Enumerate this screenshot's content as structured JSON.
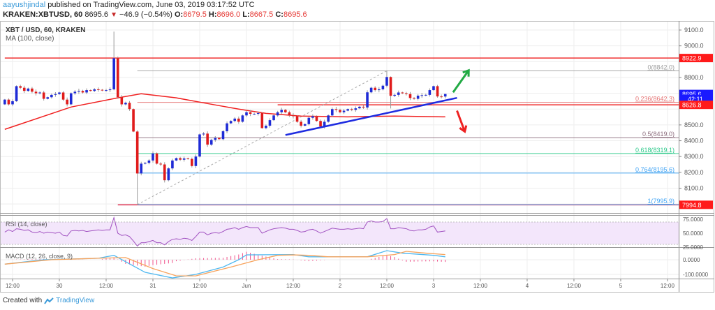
{
  "header": {
    "author": "aayushjindal",
    "published": "published on TradingView.com, June 03, 2019 03:17:52 UTC",
    "symbol": "KRAKEN:XBTUSD, 60",
    "last": "8695.6",
    "change": "−46.9 (−0.54%)",
    "o_label": "O:",
    "o": "8679.5",
    "h_label": "H:",
    "h": "8696.0",
    "l_label": "L:",
    "l": "8667.5",
    "c_label": "C:",
    "c": "8695.6"
  },
  "legend": {
    "title": "XBT / USD, 60, KRAKEN",
    "ma": "MA (100, close)",
    "rsi": "RSI (14, close)",
    "macd": "MACD (12, 26, close, 9)"
  },
  "footer": {
    "created_with": "Created with",
    "brand": "TradingView"
  },
  "colors": {
    "up": "#1e2bd6",
    "down": "#e01b1b",
    "ma": "#f02020",
    "trendline": "#1e2be0",
    "rsi": "#a050c0",
    "macd": "#4fb8f0",
    "signal": "#f7a35c",
    "hist": "#f0508a"
  },
  "chart_data": {
    "type": "candlestick",
    "interval": "60",
    "start": "05-29 10:00",
    "first_open": 8630,
    "close": [
      8660,
      8630,
      8650,
      8745,
      8735,
      8715,
      8730,
      8710,
      8700,
      8705,
      8665,
      8675,
      8690,
      8695,
      8705,
      8660,
      8630,
      8700,
      8710,
      8715,
      8705,
      8720,
      8715,
      8725,
      8722,
      8718,
      8720,
      8725,
      8922,
      8675,
      8630,
      8640,
      8600,
      8458,
      8193,
      8255,
      8260,
      8275,
      8320,
      8255,
      8250,
      8150,
      8225,
      8275,
      8290,
      8280,
      8288,
      8285,
      8240,
      8300,
      8440,
      8445,
      8375,
      8405,
      8418,
      8410,
      8460,
      8510,
      8525,
      8540,
      8520,
      8560,
      8580,
      8570,
      8570,
      8575,
      8480,
      8495,
      8530,
      8560,
      8580,
      8595,
      8580,
      8560,
      8555,
      8520,
      8495,
      8505,
      8545,
      8555,
      8525,
      8490,
      8520,
      8560,
      8600,
      8595,
      8580,
      8590,
      8600,
      8595,
      8605,
      8615,
      8610,
      8706,
      8735,
      8720,
      8725,
      8748,
      8803,
      8684,
      8690,
      8705,
      8700,
      8695,
      8670,
      8665,
      8685,
      8688,
      8690,
      8720,
      8745,
      8680,
      8679.5,
      8695.6
    ],
    "wick_extremes": [
      {
        "time": "05-30 14:00",
        "high": 9090
      },
      {
        "time": "05-30 20:00",
        "low": 7995.9
      },
      {
        "time": "06-02 12:00",
        "high": 8842
      },
      {
        "time": "06-02 13:00",
        "low": 8604
      },
      {
        "time": "06-03 03:00",
        "high": 8696.0,
        "low": 8667.5
      }
    ],
    "ma100": [
      [
        "05-29 10:00",
        8472
      ],
      [
        "05-30 03:00",
        8613
      ],
      [
        "05-30 15:00",
        8671
      ],
      [
        "05-30 21:00",
        8697
      ],
      [
        "05-31 06:00",
        8671
      ],
      [
        "05-31 14:00",
        8635
      ],
      [
        "05-31 22:00",
        8600
      ],
      [
        "06-01 05:00",
        8573
      ],
      [
        "06-01 14:00",
        8556
      ],
      [
        "06-02 02:00",
        8551
      ],
      [
        "06-02 14:00",
        8556
      ],
      [
        "06-03 03:00",
        8551
      ]
    ],
    "price_axis": {
      "range": [
        7950,
        9150
      ],
      "ticks": [
        "9100.0",
        "9000.0",
        "8800.0",
        "8500.0",
        "8400.0",
        "8300.0",
        "8200.0",
        "8100.0"
      ],
      "tick_values": [
        9100,
        9000,
        8800,
        8500,
        8400,
        8300,
        8200,
        8100
      ],
      "grid_values": [
        9100,
        9000,
        8900,
        8800,
        8700,
        8600,
        8500,
        8400,
        8300,
        8200,
        8100,
        8000
      ]
    },
    "time_axis": {
      "labels": [
        "12:00",
        "30",
        "12:00",
        "31",
        "12:00",
        "Jun",
        "12:00",
        "2",
        "12:00",
        "3",
        "12:00",
        "4",
        "12:00",
        "5",
        "12:00"
      ],
      "times": [
        "05-29 12:00",
        "05-30 00:00",
        "05-30 12:00",
        "05-31 00:00",
        "05-31 12:00",
        "06-01 00:00",
        "06-01 12:00",
        "06-02 00:00",
        "06-02 12:00",
        "06-03 00:00",
        "06-03 12:00",
        "06-04 00:00",
        "06-04 12:00",
        "06-05 00:00",
        "06-05 12:00"
      ]
    },
    "price_tags": [
      {
        "label": "8922.9",
        "value": 8922.9,
        "color": "#ff1a1a"
      },
      {
        "label": "8695.6",
        "value": 8695.6,
        "color": "#1a1aff"
      },
      {
        "label": "42:11",
        "value": 8665,
        "color": "#1a1aff"
      },
      {
        "label": "8626.8",
        "value": 8626.8,
        "color": "#ff1a1a"
      },
      {
        "label": "7994.8",
        "value": 7994.8,
        "color": "#ff1a1a"
      }
    ],
    "horizontal_lines": [
      {
        "value": 8922.9,
        "from": "05-29 10:00",
        "color": "#f03030"
      },
      {
        "value": 8626.8,
        "from": "06-01 08:00",
        "color": "#f03030"
      },
      {
        "value": 7994.8,
        "from": "05-30 15:00",
        "color": "#e03050"
      }
    ],
    "fibonacci": {
      "from": {
        "time": "05-30 20:00",
        "price": 7995.9
      },
      "to": {
        "time": "06-02 12:00",
        "price": 8842.0
      },
      "levels": [
        {
          "label": "0(8842.0)",
          "value": 8842.0,
          "color": "#9e9e9e"
        },
        {
          "label": "0.236(8642.3)",
          "value": 8642.3,
          "color": "#e57373"
        },
        {
          "label": "0.5(8419.0)",
          "value": 8419.0,
          "color": "#8d6e7e"
        },
        {
          "label": "0.618(8319.1)",
          "value": 8319.1,
          "color": "#2cc98a"
        },
        {
          "label": "0.764(8195.6)",
          "value": 8195.6,
          "color": "#42a5f5"
        },
        {
          "label": "1(7995.9)",
          "value": 7995.9,
          "color": "#42a5f5"
        }
      ]
    },
    "trendline": {
      "from": {
        "time": "06-01 10:00",
        "price": 8436
      },
      "to": {
        "time": "06-03 06:00",
        "price": 8671
      }
    },
    "arrows": [
      {
        "direction": "up",
        "color": "#22aa44",
        "from": {
          "time": "06-03 05:00",
          "price": 8706
        },
        "to": {
          "time": "06-03 09:00",
          "price": 8845
        }
      },
      {
        "direction": "down",
        "color": "#ee2222",
        "from": {
          "time": "06-03 06:00",
          "price": 8590
        },
        "to": {
          "time": "06-03 08:00",
          "price": 8458
        }
      }
    ],
    "rsi": {
      "values": [
        52,
        56,
        53,
        58,
        57,
        55,
        56,
        52,
        51,
        53,
        50,
        52,
        51,
        50,
        52,
        46,
        45,
        54,
        55,
        54,
        55,
        53,
        54,
        55,
        56,
        55,
        56,
        56,
        78,
        50,
        46,
        47,
        44,
        36,
        27,
        33,
        33,
        35,
        37,
        33,
        33,
        29,
        35,
        39,
        40,
        39,
        41,
        40,
        37,
        44,
        52,
        52,
        47,
        50,
        51,
        50,
        53,
        57,
        58,
        60,
        57,
        60,
        62,
        60,
        60,
        60,
        50,
        53,
        56,
        58,
        59,
        60,
        59,
        57,
        57,
        55,
        52,
        53,
        56,
        57,
        54,
        50,
        53,
        56,
        59,
        58,
        57,
        57,
        58,
        57,
        58,
        59,
        58,
        70,
        72,
        70,
        70,
        71,
        76,
        58,
        58,
        60,
        59,
        58,
        55,
        54,
        56,
        56,
        57,
        61,
        63,
        52,
        53,
        54
      ],
      "band": [
        30,
        70
      ],
      "ticks": [
        "75.0000",
        "50.0000",
        "25.0000"
      ],
      "tick_values": [
        75,
        50,
        25
      ]
    },
    "macd": {
      "macd": [
        [
          "05-29 10:00",
          -30
        ],
        [
          "05-29 20:00",
          0
        ],
        [
          "05-30 10:00",
          10
        ],
        [
          "05-30 14:00",
          30
        ],
        [
          "05-30 22:00",
          -86
        ],
        [
          "05-31 05:00",
          -124
        ],
        [
          "05-31 11:00",
          -100
        ],
        [
          "05-31 18:00",
          -50
        ],
        [
          "05-31 22:00",
          0
        ],
        [
          "06-01 00:00",
          33
        ],
        [
          "06-01 12:00",
          35
        ],
        [
          "06-01 16:00",
          20
        ],
        [
          "06-02 07:00",
          20
        ],
        [
          "06-02 12:00",
          62
        ],
        [
          "06-02 16:00",
          45
        ],
        [
          "06-03 00:00",
          30
        ],
        [
          "06-03 03:00",
          20
        ]
      ],
      "signal": [
        [
          "05-29 10:00",
          -30
        ],
        [
          "05-29 22:00",
          0
        ],
        [
          "05-30 10:00",
          10
        ],
        [
          "05-30 17:00",
          15
        ],
        [
          "05-31 00:00",
          -60
        ],
        [
          "05-31 06:00",
          -110
        ],
        [
          "05-31 11:00",
          -110
        ],
        [
          "05-31 14:00",
          -90
        ],
        [
          "05-31 20:00",
          -50
        ],
        [
          "06-01 03:00",
          0
        ],
        [
          "06-01 08:00",
          30
        ],
        [
          "06-01 12:00",
          33
        ],
        [
          "06-01 16:00",
          30
        ],
        [
          "06-01 21:00",
          20
        ],
        [
          "06-02 07:00",
          20
        ],
        [
          "06-02 14:00",
          35
        ],
        [
          "06-02 17:00",
          57
        ],
        [
          "06-02 22:00",
          45
        ],
        [
          "06-03 03:00",
          35
        ]
      ],
      "ticks": [
        "0.0000",
        "-100.0000"
      ],
      "tick_values": [
        0,
        -100
      ]
    }
  }
}
